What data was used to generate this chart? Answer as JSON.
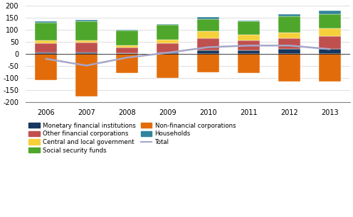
{
  "years": [
    2006,
    2007,
    2008,
    2009,
    2010,
    2011,
    2012,
    2013
  ],
  "series": {
    "monetary_financial": [
      5,
      5,
      3,
      5,
      15,
      15,
      20,
      20
    ],
    "other_financial": [
      40,
      42,
      25,
      40,
      50,
      40,
      45,
      55
    ],
    "central_local_gov": [
      10,
      10,
      8,
      15,
      30,
      25,
      25,
      30
    ],
    "social_security": [
      75,
      80,
      60,
      60,
      50,
      55,
      65,
      60
    ],
    "non_financial": [
      -110,
      -175,
      -80,
      -100,
      -75,
      -80,
      -115,
      -115
    ],
    "households": [
      5,
      5,
      3,
      5,
      8,
      5,
      10,
      15
    ]
  },
  "total": [
    -20,
    -48,
    -15,
    5,
    28,
    35,
    35,
    20
  ],
  "colors": {
    "monetary_financial": "#17375e",
    "other_financial": "#c0504d",
    "central_local_gov": "#f5d03b",
    "social_security": "#4ea72a",
    "non_financial": "#e36c0a",
    "households": "#31849b",
    "total": "#a6a6c8"
  },
  "series_order": [
    "monetary_financial",
    "other_financial",
    "central_local_gov",
    "social_security",
    "households",
    "non_financial"
  ],
  "ylim": [
    -200,
    200
  ],
  "yticks": [
    -200,
    -150,
    -100,
    -50,
    0,
    50,
    100,
    150,
    200
  ],
  "bar_width": 0.55,
  "legend": [
    [
      "Monetary financial institutions",
      "Other financial corporations"
    ],
    [
      "Central and local government",
      "Social security funds"
    ],
    [
      "Non-financial corporations",
      "Households"
    ],
    [
      "Total",
      ""
    ]
  ],
  "legend_keys": [
    [
      "monetary_financial",
      "other_financial"
    ],
    [
      "central_local_gov",
      "social_security"
    ],
    [
      "non_financial",
      "households"
    ],
    [
      "total_line",
      ""
    ]
  ]
}
